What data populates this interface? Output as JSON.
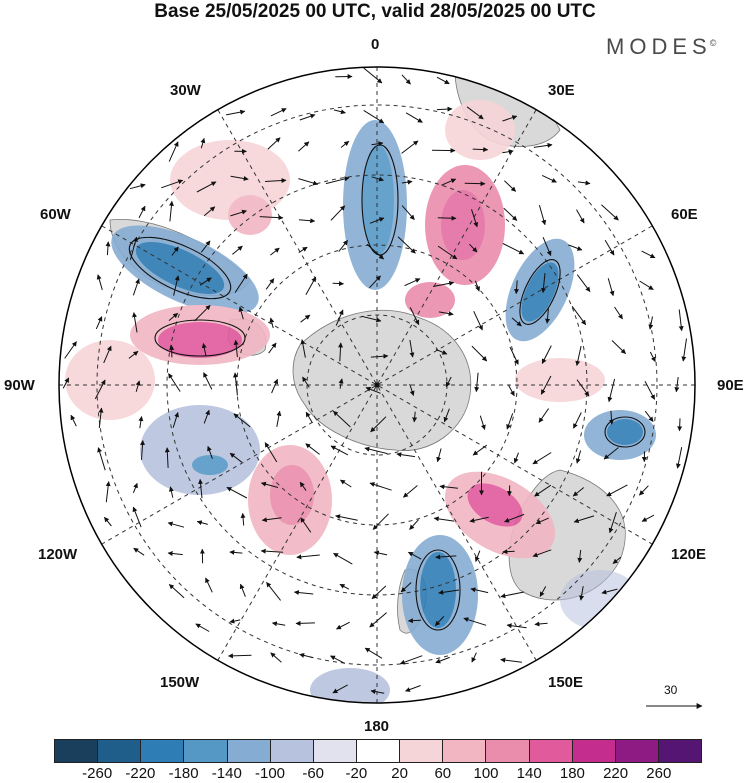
{
  "title": "Base 25/05/2025 00 UTC, valid 28/05/2025 00 UTC",
  "brand": {
    "name": "MODES",
    "mark": "©"
  },
  "longitude_labels": {
    "lon_0": "0",
    "lon_30e": "30E",
    "lon_60e": "60E",
    "lon_90e": "90E",
    "lon_120e": "120E",
    "lon_150e": "150E",
    "lon_180": "180",
    "lon_150w": "150W",
    "lon_120w": "120W",
    "lon_90w": "90W",
    "lon_60w": "60W",
    "lon_30w": "30W"
  },
  "reference_vector": {
    "value": "30"
  },
  "colorbar": {
    "ticks": [
      "-260",
      "-220",
      "-180",
      "-140",
      "-100",
      "-60",
      "-20",
      "20",
      "60",
      "100",
      "140",
      "180",
      "220",
      "260"
    ],
    "colors": [
      "#1a3f5c",
      "#1f5e8a",
      "#2f7db5",
      "#5598c6",
      "#85acd3",
      "#b7c2de",
      "#e2e2ef",
      "#ffffff",
      "#f6d5d9",
      "#f1b6c2",
      "#ea8cab",
      "#e05a9c",
      "#c42d8e",
      "#8e1a84",
      "#551673"
    ]
  },
  "colors": {
    "land": "#d9d9d9",
    "frame": "#000000"
  }
}
